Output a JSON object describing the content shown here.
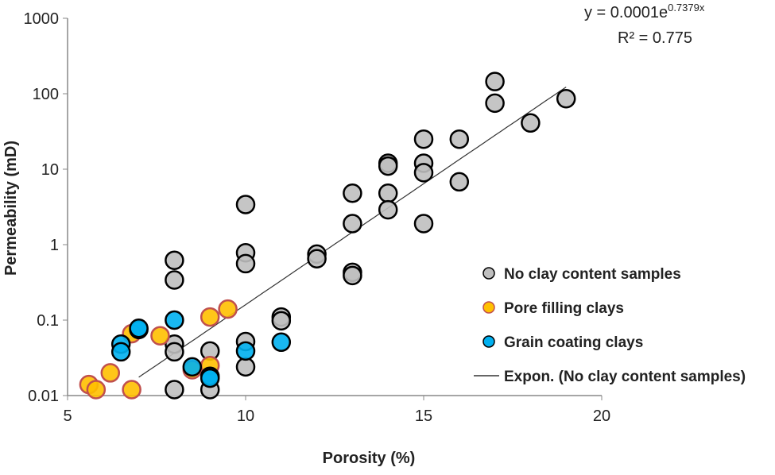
{
  "chart_data": {
    "type": "scatter",
    "xlabel": "Porosity (%)",
    "ylabel": "Permeability (mD)",
    "xlim": [
      5,
      20
    ],
    "ylim": [
      0.01,
      1000
    ],
    "yscale": "log",
    "xticks": [
      5,
      10,
      15,
      20
    ],
    "xtick_labels": [
      "5",
      "10",
      "15",
      "20"
    ],
    "yticks": [
      0.01,
      0.1,
      1,
      10,
      100,
      1000
    ],
    "ytick_labels": [
      "0.01",
      "0.1",
      "1",
      "10",
      "100",
      "1000"
    ],
    "grid": false,
    "legend_position": "right",
    "series": [
      {
        "name": "No clay content samples",
        "color": "#bfbfbf",
        "edge": "#000000",
        "x": [
          8,
          8,
          8,
          8,
          8,
          9,
          9,
          10,
          10,
          10,
          10,
          10,
          11,
          11,
          12,
          12,
          13,
          13,
          13,
          13,
          14,
          14,
          14,
          14,
          15,
          15,
          15,
          15,
          16,
          16,
          17,
          17,
          18,
          19
        ],
        "y": [
          0.62,
          0.34,
          0.048,
          0.038,
          0.012,
          0.039,
          0.012,
          3.4,
          0.78,
          0.56,
          0.052,
          0.024,
          0.11,
          0.098,
          0.75,
          0.65,
          4.8,
          1.9,
          0.43,
          0.39,
          12,
          11,
          4.8,
          2.9,
          25,
          12,
          9,
          1.9,
          25,
          6.8,
          145,
          75,
          41,
          86
        ]
      },
      {
        "name": "Pore filling clays",
        "color": "#ffc000",
        "edge": "#c0504d",
        "x": [
          5.6,
          5.8,
          6.2,
          6.8,
          6.8,
          7.6,
          8.5,
          9,
          9,
          9.5
        ],
        "y": [
          0.014,
          0.012,
          0.02,
          0.012,
          0.066,
          0.062,
          0.022,
          0.11,
          0.025,
          0.14
        ]
      },
      {
        "name": "Grain coating clays",
        "color": "#00b0f0",
        "edge": "#000000",
        "x": [
          6.5,
          6.5,
          7,
          7,
          8,
          8.5,
          9,
          9,
          10,
          11
        ],
        "y": [
          0.048,
          0.038,
          0.075,
          0.078,
          0.1,
          0.024,
          0.018,
          0.017,
          0.039,
          0.051
        ]
      }
    ],
    "trendline": {
      "name": "Expon. (No clay content samples)",
      "a": 0.0001,
      "b": 0.7379,
      "x_range": [
        7,
        19
      ],
      "equation_prefix": "y = 0.0001e",
      "equation_exponent": "0.7379x",
      "r_squared_label": "R² = 0.775"
    }
  }
}
